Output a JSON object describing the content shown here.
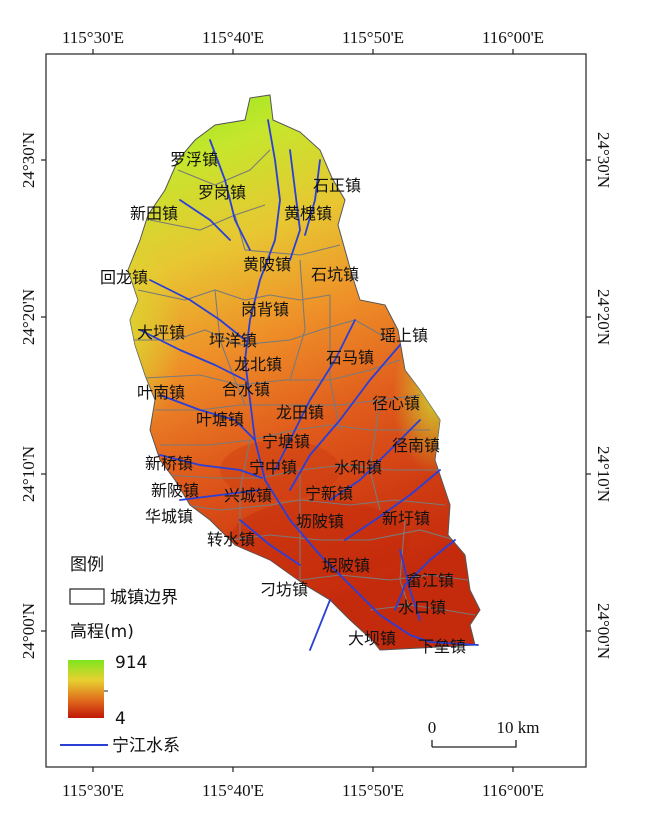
{
  "lon_labels": [
    "115°30'E",
    "115°40'E",
    "115°50'E",
    "116°00'E"
  ],
  "lat_labels": [
    "24°30'N",
    "24°20'N",
    "24°10'N",
    "24°00'N"
  ],
  "towns": [
    "罗浮镇",
    "罗岗镇",
    "新田镇",
    "石正镇",
    "黄槐镇",
    "回龙镇",
    "黄陂镇",
    "石坑镇",
    "岗背镇",
    "大坪镇",
    "坪洋镇",
    "瑶上镇",
    "龙北镇",
    "石马镇",
    "叶南镇",
    "合水镇",
    "径心镇",
    "叶塘镇",
    "龙田镇",
    "宁塘镇",
    "径南镇",
    "新桥镇",
    "宁中镇",
    "水和镇",
    "新陂镇",
    "兴城镇",
    "宁新镇",
    "华城镇",
    "坜陂镇",
    "新圩镇",
    "转水镇",
    "坭陂镇",
    "畲江镇",
    "刁坊镇",
    "水口镇",
    "大坝镇",
    "下垒镇"
  ],
  "legend": {
    "title": "图例",
    "boundary_label": "城镇边界",
    "elevation_title": "高程(m)",
    "elev_max": "914",
    "elev_min": "4",
    "river_label": "宁江水系"
  },
  "scale": {
    "zero": "0",
    "ten": "10 km"
  },
  "colors": {
    "high": "#7fe620",
    "mid": "#f0b830",
    "low": "#c01808",
    "river": "#2a3fd8",
    "boundary": "#7a7a7a"
  }
}
